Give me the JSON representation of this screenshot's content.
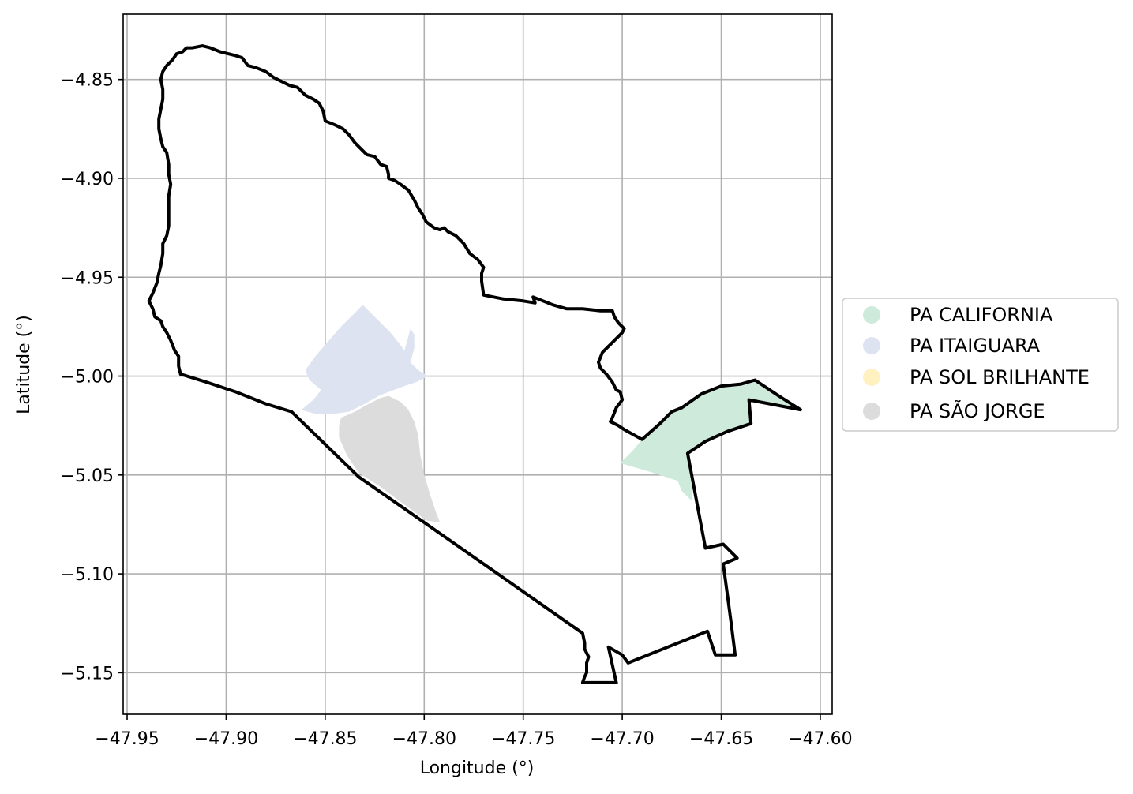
{
  "map": {
    "xlabel": "Longitude (°)",
    "ylabel": "Latitude (°)",
    "xlim": [
      -47.952,
      -47.594
    ],
    "ylim": [
      -5.171,
      -4.817
    ],
    "grid": true,
    "x_ticks": [
      {
        "value": -47.95,
        "label": "−47.95"
      },
      {
        "value": -47.9,
        "label": "−47.90"
      },
      {
        "value": -47.85,
        "label": "−47.85"
      },
      {
        "value": -47.8,
        "label": "−47.80"
      },
      {
        "value": -47.75,
        "label": "−47.75"
      },
      {
        "value": -47.7,
        "label": "−47.70"
      },
      {
        "value": -47.65,
        "label": "−47.65"
      },
      {
        "value": -47.6,
        "label": "−47.60"
      }
    ],
    "y_ticks": [
      {
        "value": -4.85,
        "label": "−4.85"
      },
      {
        "value": -4.9,
        "label": "−4.90"
      },
      {
        "value": -4.95,
        "label": "−4.95"
      },
      {
        "value": -5.0,
        "label": "−5.00"
      },
      {
        "value": -5.05,
        "label": "−5.05"
      },
      {
        "value": -5.1,
        "label": "−5.10"
      },
      {
        "value": -5.15,
        "label": "−5.15"
      }
    ],
    "legend": {
      "placement": "right",
      "entries": [
        {
          "label": "PA CALIFORNIA",
          "color": "#cdeadb"
        },
        {
          "label": "PA ITAIGUARA",
          "color": "#dde3f0"
        },
        {
          "label": "PA SOL BRILHANTE",
          "color": "#fff2c0"
        },
        {
          "label": "PA SÃO JORGE",
          "color": "#dcdcdc"
        }
      ]
    },
    "boundary": {
      "color": "#000000",
      "coords": [
        [
          -47.923,
          -4.999
        ],
        [
          -47.924,
          -4.995
        ],
        [
          -47.924,
          -4.99
        ],
        [
          -47.926,
          -4.987
        ],
        [
          -47.928,
          -4.982
        ],
        [
          -47.93,
          -4.978
        ],
        [
          -47.932,
          -4.975
        ],
        [
          -47.933,
          -4.972
        ],
        [
          -47.936,
          -4.97
        ],
        [
          -47.937,
          -4.966
        ],
        [
          -47.939,
          -4.962
        ],
        [
          -47.937,
          -4.958
        ],
        [
          -47.935,
          -4.953
        ],
        [
          -47.934,
          -4.948
        ],
        [
          -47.933,
          -4.944
        ],
        [
          -47.932,
          -4.938
        ],
        [
          -47.932,
          -4.933
        ],
        [
          -47.93,
          -4.929
        ],
        [
          -47.929,
          -4.924
        ],
        [
          -47.929,
          -4.916
        ],
        [
          -47.929,
          -4.909
        ],
        [
          -47.928,
          -4.903
        ],
        [
          -47.929,
          -4.898
        ],
        [
          -47.929,
          -4.893
        ],
        [
          -47.93,
          -4.887
        ],
        [
          -47.932,
          -4.884
        ],
        [
          -47.933,
          -4.88
        ],
        [
          -47.934,
          -4.875
        ],
        [
          -47.934,
          -4.87
        ],
        [
          -47.933,
          -4.865
        ],
        [
          -47.932,
          -4.86
        ],
        [
          -47.932,
          -4.855
        ],
        [
          -47.933,
          -4.85
        ],
        [
          -47.932,
          -4.846
        ],
        [
          -47.93,
          -4.843
        ],
        [
          -47.927,
          -4.84
        ],
        [
          -47.925,
          -4.837
        ],
        [
          -47.922,
          -4.836
        ],
        [
          -47.92,
          -4.834
        ],
        [
          -47.917,
          -4.834
        ],
        [
          -47.912,
          -4.833
        ],
        [
          -47.908,
          -4.834
        ],
        [
          -47.903,
          -4.836
        ],
        [
          -47.899,
          -4.837
        ],
        [
          -47.895,
          -4.838
        ],
        [
          -47.892,
          -4.839
        ],
        [
          -47.889,
          -4.843
        ],
        [
          -47.885,
          -4.844
        ],
        [
          -47.88,
          -4.846
        ],
        [
          -47.876,
          -4.849
        ],
        [
          -47.872,
          -4.851
        ],
        [
          -47.868,
          -4.853
        ],
        [
          -47.864,
          -4.854
        ],
        [
          -47.86,
          -4.858
        ],
        [
          -47.856,
          -4.86
        ],
        [
          -47.853,
          -4.862
        ],
        [
          -47.851,
          -4.866
        ],
        [
          -47.85,
          -4.871
        ],
        [
          -47.845,
          -4.873
        ],
        [
          -47.841,
          -4.875
        ],
        [
          -47.838,
          -4.878
        ],
        [
          -47.835,
          -4.882
        ],
        [
          -47.832,
          -4.885
        ],
        [
          -47.829,
          -4.888
        ],
        [
          -47.825,
          -4.889
        ],
        [
          -47.822,
          -4.893
        ],
        [
          -47.819,
          -4.894
        ],
        [
          -47.818,
          -4.898
        ],
        [
          -47.818,
          -4.9
        ],
        [
          -47.815,
          -4.901
        ],
        [
          -47.812,
          -4.903
        ],
        [
          -47.808,
          -4.906
        ],
        [
          -47.805,
          -4.911
        ],
        [
          -47.803,
          -4.915
        ],
        [
          -47.801,
          -4.918
        ],
        [
          -47.799,
          -4.922
        ],
        [
          -47.795,
          -4.925
        ],
        [
          -47.792,
          -4.926
        ],
        [
          -47.79,
          -4.925
        ],
        [
          -47.788,
          -4.927
        ],
        [
          -47.784,
          -4.929
        ],
        [
          -47.78,
          -4.933
        ],
        [
          -47.777,
          -4.938
        ],
        [
          -47.773,
          -4.941
        ],
        [
          -47.77,
          -4.945
        ],
        [
          -47.771,
          -4.948
        ],
        [
          -47.771,
          -4.952
        ],
        [
          -47.77,
          -4.959
        ],
        [
          -47.76,
          -4.961
        ],
        [
          -47.75,
          -4.962
        ],
        [
          -47.744,
          -4.963
        ],
        [
          -47.745,
          -4.96
        ],
        [
          -47.74,
          -4.962
        ],
        [
          -47.735,
          -4.964
        ],
        [
          -47.728,
          -4.966
        ],
        [
          -47.72,
          -4.966
        ],
        [
          -47.711,
          -4.967
        ],
        [
          -47.705,
          -4.967
        ],
        [
          -47.704,
          -4.97
        ],
        [
          -47.702,
          -4.973
        ],
        [
          -47.699,
          -4.976
        ],
        [
          -47.7,
          -4.978
        ],
        [
          -47.703,
          -4.981
        ],
        [
          -47.706,
          -4.984
        ],
        [
          -47.71,
          -4.988
        ],
        [
          -47.712,
          -4.993
        ],
        [
          -47.711,
          -4.996
        ],
        [
          -47.708,
          -4.999
        ],
        [
          -47.705,
          -5.003
        ],
        [
          -47.703,
          -5.007
        ],
        [
          -47.701,
          -5.008
        ],
        [
          -47.7,
          -5.012
        ],
        [
          -47.703,
          -5.016
        ],
        [
          -47.705,
          -5.021
        ],
        [
          -47.706,
          -5.023
        ],
        [
          -47.702,
          -5.025
        ],
        [
          -47.699,
          -5.027
        ],
        [
          -47.69,
          -5.032
        ],
        [
          -47.681,
          -5.024
        ],
        [
          -47.675,
          -5.018
        ],
        [
          -47.67,
          -5.016
        ],
        [
          -47.66,
          -5.009
        ],
        [
          -47.65,
          -5.005
        ],
        [
          -47.64,
          -5.004
        ],
        [
          -47.633,
          -5.002
        ],
        [
          -47.621,
          -5.01
        ],
        [
          -47.61,
          -5.017
        ],
        [
          -47.636,
          -5.012
        ],
        [
          -47.635,
          -5.024
        ],
        [
          -47.647,
          -5.028
        ],
        [
          -47.658,
          -5.033
        ],
        [
          -47.667,
          -5.039
        ],
        [
          -47.664,
          -5.055
        ],
        [
          -47.661,
          -5.071
        ],
        [
          -47.658,
          -5.087
        ],
        [
          -47.649,
          -5.085
        ],
        [
          -47.642,
          -5.092
        ],
        [
          -47.649,
          -5.095
        ],
        [
          -47.647,
          -5.11
        ],
        [
          -47.645,
          -5.125
        ],
        [
          -47.643,
          -5.141
        ],
        [
          -47.653,
          -5.141
        ],
        [
          -47.657,
          -5.129
        ],
        [
          -47.677,
          -5.137
        ],
        [
          -47.697,
          -5.145
        ],
        [
          -47.7,
          -5.141
        ],
        [
          -47.707,
          -5.137
        ],
        [
          -47.705,
          -5.146
        ],
        [
          -47.703,
          -5.155
        ],
        [
          -47.72,
          -5.155
        ],
        [
          -47.719,
          -5.152
        ],
        [
          -47.718,
          -5.15
        ],
        [
          -47.718,
          -5.145
        ],
        [
          -47.717,
          -5.142
        ],
        [
          -47.719,
          -5.138
        ],
        [
          -47.719,
          -5.135
        ],
        [
          -47.72,
          -5.13
        ],
        [
          -47.76,
          -5.102
        ],
        [
          -47.8,
          -5.074
        ],
        [
          -47.833,
          -5.051
        ],
        [
          -47.867,
          -5.018
        ],
        [
          -47.88,
          -5.014
        ],
        [
          -47.895,
          -5.008
        ],
        [
          -47.91,
          -5.003
        ],
        [
          -47.923,
          -4.999
        ]
      ]
    },
    "areas": [
      {
        "name": "PA ITAIGUARA",
        "color": "#dde3f0",
        "coords": [
          [
            -47.86,
            -4.997
          ],
          [
            -47.855,
            -4.99
          ],
          [
            -47.849,
            -4.983
          ],
          [
            -47.842,
            -4.975
          ],
          [
            -47.836,
            -4.969
          ],
          [
            -47.831,
            -4.964
          ],
          [
            -47.827,
            -4.968
          ],
          [
            -47.822,
            -4.973
          ],
          [
            -47.817,
            -4.978
          ],
          [
            -47.813,
            -4.983
          ],
          [
            -47.81,
            -4.987
          ],
          [
            -47.808,
            -4.98
          ],
          [
            -47.807,
            -4.976
          ],
          [
            -47.805,
            -4.979
          ],
          [
            -47.805,
            -4.986
          ],
          [
            -47.807,
            -4.993
          ],
          [
            -47.803,
            -4.997
          ],
          [
            -47.798,
            -5.0
          ],
          [
            -47.804,
            -5.003
          ],
          [
            -47.81,
            -5.005
          ],
          [
            -47.818,
            -5.008
          ],
          [
            -47.823,
            -5.01
          ],
          [
            -47.83,
            -5.014
          ],
          [
            -47.838,
            -5.018
          ],
          [
            -47.845,
            -5.019
          ],
          [
            -47.855,
            -5.019
          ],
          [
            -47.859,
            -5.018
          ],
          [
            -47.862,
            -5.017
          ],
          [
            -47.856,
            -5.012
          ],
          [
            -47.852,
            -5.007
          ],
          [
            -47.858,
            -5.002
          ],
          [
            -47.86,
            -4.997
          ]
        ]
      },
      {
        "name": "PA SÃO JORGE",
        "color": "#dcdcdc",
        "coords": [
          [
            -47.842,
            -5.021
          ],
          [
            -47.835,
            -5.018
          ],
          [
            -47.828,
            -5.014
          ],
          [
            -47.822,
            -5.011
          ],
          [
            -47.818,
            -5.01
          ],
          [
            -47.812,
            -5.013
          ],
          [
            -47.808,
            -5.017
          ],
          [
            -47.805,
            -5.023
          ],
          [
            -47.803,
            -5.03
          ],
          [
            -47.802,
            -5.04
          ],
          [
            -47.8,
            -5.05
          ],
          [
            -47.797,
            -5.06
          ],
          [
            -47.794,
            -5.069
          ],
          [
            -47.792,
            -5.074
          ],
          [
            -47.799,
            -5.073
          ],
          [
            -47.81,
            -5.065
          ],
          [
            -47.822,
            -5.056
          ],
          [
            -47.833,
            -5.049
          ],
          [
            -47.839,
            -5.04
          ],
          [
            -47.843,
            -5.031
          ],
          [
            -47.843,
            -5.025
          ],
          [
            -47.842,
            -5.021
          ]
        ]
      },
      {
        "name": "PA CALIFORNIA",
        "color": "#cdeadb",
        "coords": [
          [
            -47.701,
            -5.044
          ],
          [
            -47.695,
            -5.038
          ],
          [
            -47.69,
            -5.032
          ],
          [
            -47.681,
            -5.024
          ],
          [
            -47.675,
            -5.018
          ],
          [
            -47.67,
            -5.016
          ],
          [
            -47.66,
            -5.009
          ],
          [
            -47.65,
            -5.005
          ],
          [
            -47.64,
            -5.004
          ],
          [
            -47.633,
            -5.002
          ],
          [
            -47.621,
            -5.01
          ],
          [
            -47.61,
            -5.017
          ],
          [
            -47.636,
            -5.012
          ],
          [
            -47.635,
            -5.024
          ],
          [
            -47.647,
            -5.028
          ],
          [
            -47.658,
            -5.033
          ],
          [
            -47.667,
            -5.039
          ],
          [
            -47.665,
            -5.052
          ],
          [
            -47.665,
            -5.063
          ],
          [
            -47.67,
            -5.058
          ],
          [
            -47.672,
            -5.053
          ],
          [
            -47.684,
            -5.049
          ],
          [
            -47.701,
            -5.044
          ]
        ]
      }
    ]
  }
}
